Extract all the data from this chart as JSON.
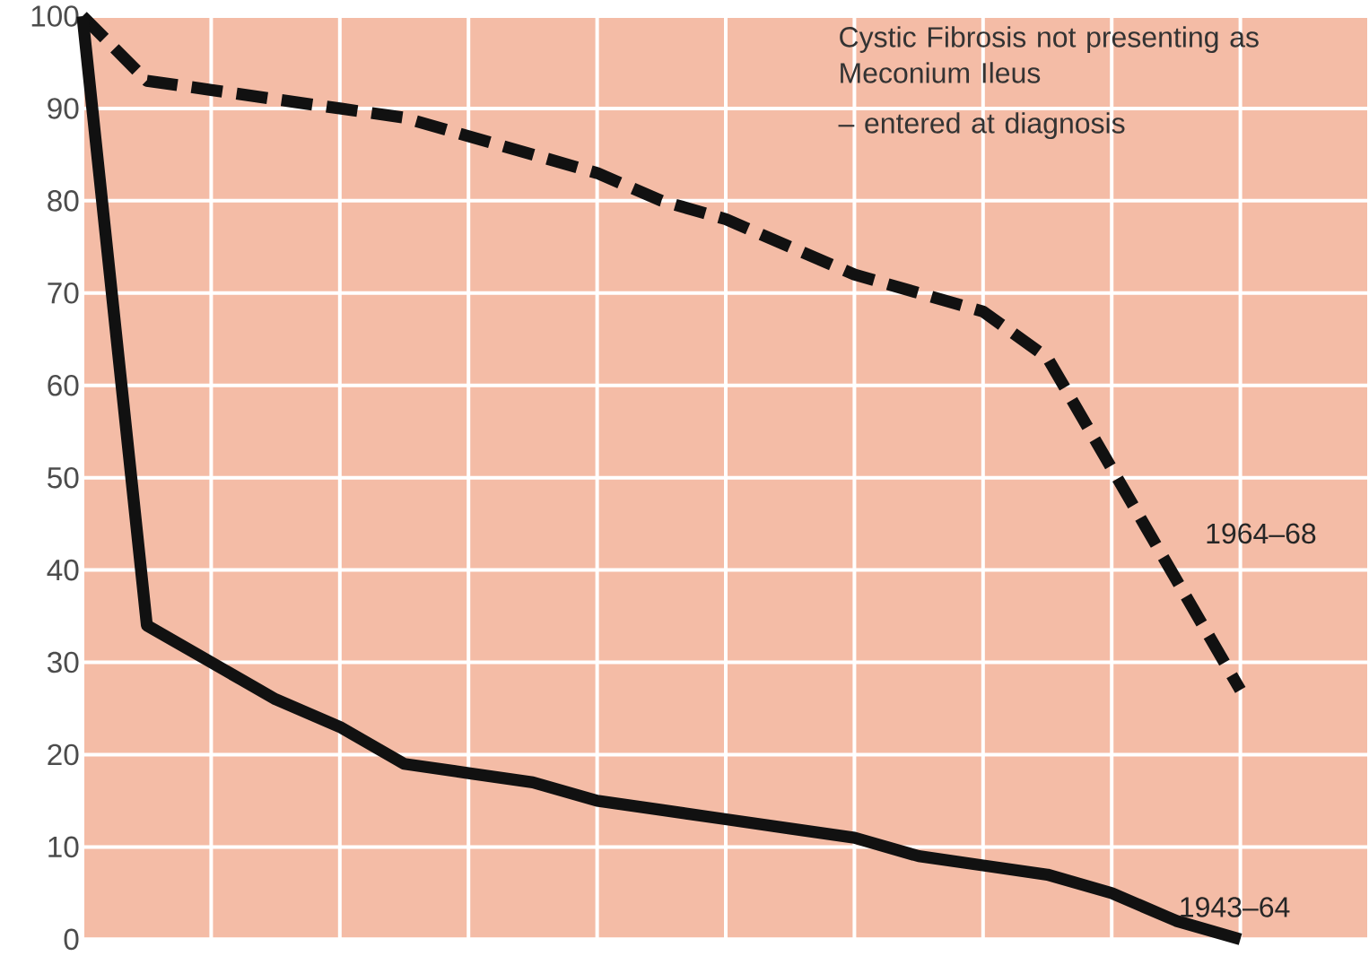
{
  "chart_data": {
    "type": "line",
    "categories": [
      null,
      null,
      null,
      null,
      null,
      null,
      null,
      null,
      null,
      null,
      null,
      null,
      null,
      null,
      null,
      null,
      null,
      null,
      null
    ],
    "ylim": [
      0,
      100
    ],
    "yticks": [
      0,
      10,
      20,
      30,
      40,
      50,
      60,
      70,
      80,
      90,
      100
    ],
    "grid": true,
    "legend": false,
    "tick_labels": "y",
    "marker": "none",
    "series": [
      {
        "name": "1964–68",
        "color": "#111111",
        "line_style": "dashed",
        "values": [
          100,
          93,
          92,
          91,
          90,
          89,
          87,
          85,
          83,
          80,
          78,
          75,
          72,
          70,
          68,
          63,
          51,
          39,
          27
        ]
      },
      {
        "name": "1943–64",
        "color": "#111111",
        "line_style": "solid",
        "values": [
          100,
          34,
          30,
          26,
          23,
          19,
          18,
          17,
          15,
          14,
          13,
          12,
          11,
          9,
          8,
          7,
          5,
          2,
          0
        ]
      }
    ],
    "annotations": [
      "Cystic Fibrosis not presenting as Meconium Ileus",
      "– entered at diagnosis"
    ]
  }
}
